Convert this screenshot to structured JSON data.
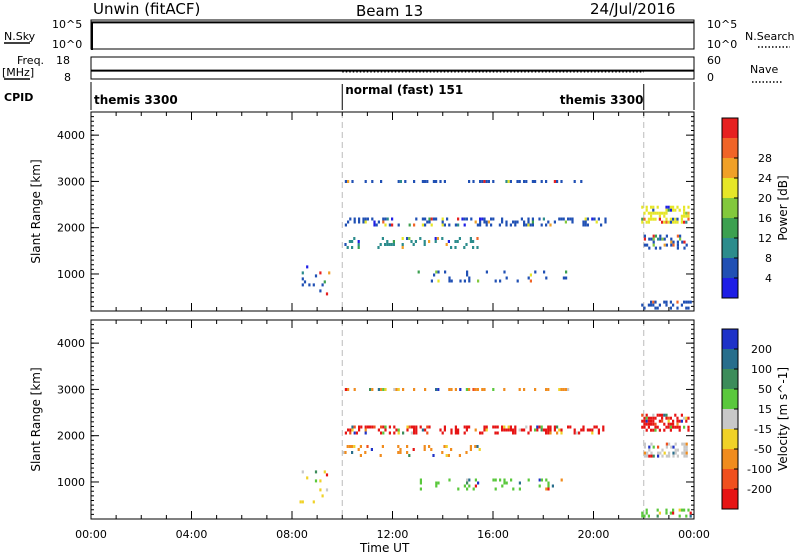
{
  "header": {
    "station": "Unwin (fitACF)",
    "beam": "Beam 13",
    "date": "24/Jul/2016"
  },
  "top_panels": {
    "nsky": {
      "label": "N.Sky",
      "left_ticks": [
        "10^5",
        "10^0"
      ],
      "right_ticks": [
        "10^5",
        "10^0"
      ],
      "right_legend": "N.Search",
      "level": 0.92
    },
    "freq": {
      "label_line1": "Freq.",
      "label_line2": "[MHz]",
      "left_ticks": [
        "18",
        "8"
      ],
      "right_ticks": [
        "60",
        "0"
      ],
      "right_legend": "Nave",
      "level": 0.38,
      "nave_level": 0.28
    },
    "cpid": {
      "label": "CPID",
      "segments": [
        {
          "text": "themis 3300",
          "start": 0.0,
          "end": 10.0
        },
        {
          "text": "normal (fast) 151",
          "start": 10.0,
          "end": 22.0
        },
        {
          "text": "themis 3300",
          "start": 22.0,
          "end": 24.0
        }
      ]
    }
  },
  "chart_data": [
    {
      "type": "heatmap",
      "name": "power",
      "ylabel": "Slant Range [km]",
      "yticks": [
        "1000",
        "2000",
        "3000",
        "4000"
      ],
      "ylim": [
        200,
        4500
      ],
      "xlim": [
        0,
        24
      ],
      "colorbar": {
        "label": "Power [dB]",
        "ticks": [
          "4",
          "8",
          "12",
          "16",
          "20",
          "24",
          "28"
        ],
        "colors": [
          "#1e1ee6",
          "#2050b4",
          "#2c8c8c",
          "#3ca050",
          "#82c83c",
          "#e6e628",
          "#f0a028",
          "#f06428",
          "#e62020"
        ]
      },
      "bands": [
        {
          "x0": 10.1,
          "x1": 19.5,
          "y": 3000,
          "h": 60,
          "color": "#2050b4",
          "density": 0.35
        },
        {
          "x0": 10.1,
          "x1": 20.5,
          "y": 2150,
          "h": 140,
          "color": "#2050b4",
          "density": 0.4
        },
        {
          "x0": 10.0,
          "x1": 15.5,
          "y": 1700,
          "h": 200,
          "color": "#2c8c8c",
          "density": 0.15
        },
        {
          "x0": 13.0,
          "x1": 19.0,
          "y": 950,
          "h": 250,
          "color": "#2050b4",
          "density": 0.12
        },
        {
          "x0": 21.9,
          "x1": 23.8,
          "y": 2300,
          "h": 350,
          "color": "#e6e628",
          "density": 0.55
        },
        {
          "x0": 22.0,
          "x1": 23.7,
          "y": 1700,
          "h": 300,
          "color": "#2050b4",
          "density": 0.45
        },
        {
          "x0": 21.9,
          "x1": 23.9,
          "y": 350,
          "h": 150,
          "color": "#2050b4",
          "density": 0.35
        },
        {
          "x0": 8.3,
          "x1": 9.6,
          "y": 900,
          "h": 700,
          "color": "#2050b4",
          "density": 0.08
        }
      ]
    },
    {
      "type": "heatmap",
      "name": "velocity",
      "xlabel": "Time UT",
      "ylabel": "Slant Range [km]",
      "yticks": [
        "1000",
        "2000",
        "3000",
        "4000"
      ],
      "xticks": [
        "00:00",
        "04:00",
        "08:00",
        "12:00",
        "16:00",
        "20:00",
        "00:00"
      ],
      "ylim": [
        200,
        4500
      ],
      "xlim": [
        0,
        24
      ],
      "colorbar": {
        "label": "Velocity [m s^-1]",
        "ticks": [
          "200",
          "100",
          "50",
          "15",
          "-15",
          "-50",
          "-100",
          "-200"
        ],
        "colors": [
          "#1e32c8",
          "#286e8c",
          "#3c8c5a",
          "#5ac83c",
          "#c8c8c8",
          "#f0d228",
          "#f08c1e",
          "#f0501e",
          "#e61414"
        ]
      },
      "bands": [
        {
          "x0": 10.1,
          "x1": 19.5,
          "y": 3000,
          "h": 60,
          "color": "#f08c1e",
          "density": 0.35
        },
        {
          "x0": 10.1,
          "x1": 20.5,
          "y": 2150,
          "h": 140,
          "color": "#e61414",
          "density": 0.4
        },
        {
          "x0": 10.0,
          "x1": 15.5,
          "y": 1700,
          "h": 200,
          "color": "#f08c1e",
          "density": 0.15
        },
        {
          "x0": 13.0,
          "x1": 19.0,
          "y": 950,
          "h": 250,
          "color": "#5ac83c",
          "density": 0.12
        },
        {
          "x0": 21.9,
          "x1": 23.8,
          "y": 2300,
          "h": 350,
          "color": "#e61414",
          "density": 0.55
        },
        {
          "x0": 22.0,
          "x1": 23.7,
          "y": 1700,
          "h": 300,
          "color": "#c8c8c8",
          "density": 0.45
        },
        {
          "x0": 21.9,
          "x1": 23.9,
          "y": 350,
          "h": 150,
          "color": "#5ac83c",
          "density": 0.35
        },
        {
          "x0": 8.3,
          "x1": 9.6,
          "y": 900,
          "h": 700,
          "color": "#f0d228",
          "density": 0.08
        }
      ]
    }
  ]
}
